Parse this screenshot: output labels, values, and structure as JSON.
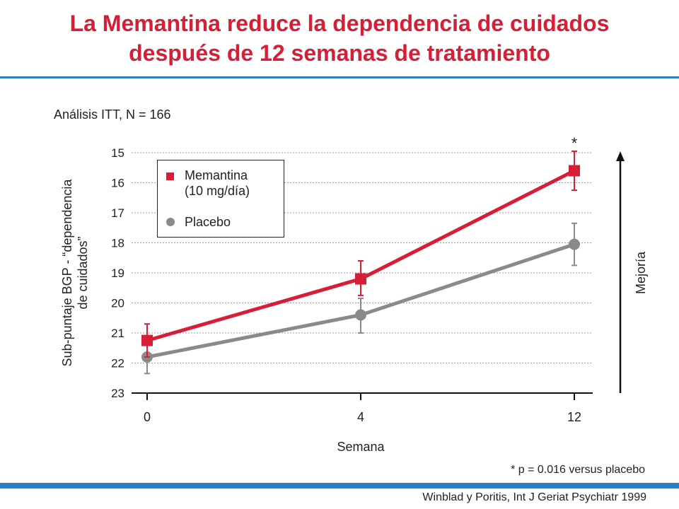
{
  "header": {
    "title_line1": "La Memantina reduce la dependencia de cuidados",
    "title_line2": "después de 12 semanas de tratamiento"
  },
  "subtitle": "Análisis ITT, N = 166",
  "footnote": "* p = 0.016 versus placebo",
  "citation": "Winblad y Poritis, Int J Geriat Psychiatr 1999",
  "improvement_label": "Mejoría",
  "colors": {
    "accent": "#d71e36",
    "placebo": "#8a8a8a",
    "rule": "#2e7fc1"
  },
  "chart_data": {
    "type": "line",
    "ylabel_line1": "Sub-puntaje BGP - “dependencia",
    "ylabel_line2": "de cuidados”",
    "xlabel": "Semana",
    "x": [
      0,
      4,
      12
    ],
    "x_tick_labels": [
      "0",
      "4",
      "12"
    ],
    "y_inverted": true,
    "ylim": [
      15,
      23
    ],
    "y_ticks": [
      15,
      16,
      17,
      18,
      19,
      20,
      21,
      22,
      23
    ],
    "grid": true,
    "legend_position": "top-left",
    "series": [
      {
        "name": "Memantina",
        "name_line2": "(10 mg/día)",
        "marker": "square",
        "color": "#d71e36",
        "values": [
          21.25,
          19.2,
          15.6
        ],
        "error_low": [
          21.8,
          19.75,
          16.25
        ],
        "error_high": [
          20.7,
          18.6,
          14.95
        ]
      },
      {
        "name": "Placebo",
        "marker": "circle",
        "color": "#8a8a8a",
        "values": [
          21.8,
          20.4,
          18.05
        ],
        "error_low": [
          22.35,
          21.0,
          18.75
        ],
        "error_high": [
          21.25,
          19.85,
          17.35
        ]
      }
    ],
    "annotations": [
      {
        "text": "*",
        "x": 12,
        "series": "Memantina"
      }
    ]
  }
}
